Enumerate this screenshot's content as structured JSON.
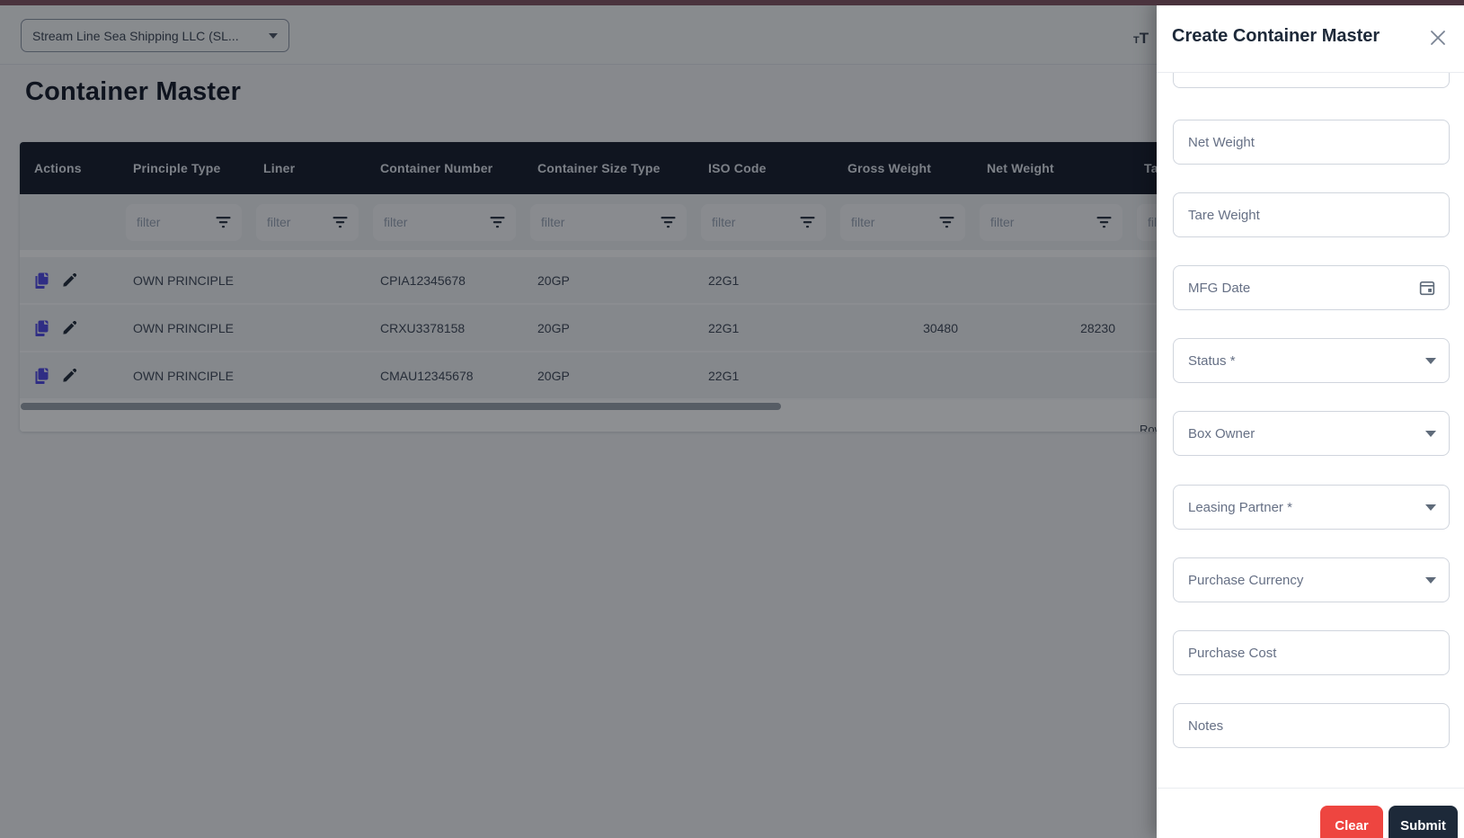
{
  "topbar": {
    "company_selector_value": "Stream Line Sea Shipping LLC  (SL...",
    "text_size_icon_small": "T",
    "text_size_icon_large": "T"
  },
  "page": {
    "title": "Container Master"
  },
  "table": {
    "filter_placeholder": "filter",
    "columns": [
      "Actions",
      "Principle Type",
      "Liner",
      "Container Number",
      "Container Size Type",
      "ISO Code",
      "Gross Weight",
      "Net Weight",
      "Tare Weight"
    ],
    "rows": [
      [
        "",
        "OWN PRINCIPLE",
        "",
        "CPIA12345678",
        "20GP",
        "22G1",
        "",
        "",
        ""
      ],
      [
        "",
        "OWN PRINCIPLE",
        "",
        "CRXU3378158",
        "20GP",
        "22G1",
        "30480",
        "28230",
        ""
      ],
      [
        "",
        "OWN PRINCIPLE",
        "",
        "CMAU12345678",
        "20GP",
        "22G1",
        "",
        "",
        ""
      ]
    ],
    "row_action_icons": [
      "copy-icon",
      "pencil-icon"
    ],
    "footer": {
      "rows_per_page_label": "Rows per page:"
    }
  },
  "drawer": {
    "title": "Create Container Master",
    "fields": [
      {
        "label": "Net Weight",
        "type": "text"
      },
      {
        "label": "Tare Weight",
        "type": "text"
      },
      {
        "label": "MFG Date",
        "type": "date"
      },
      {
        "label": "Status *",
        "type": "select"
      },
      {
        "label": "Box Owner",
        "type": "select"
      },
      {
        "label": "Leasing Partner *",
        "type": "select"
      },
      {
        "label": "Purchase Currency",
        "type": "select"
      },
      {
        "label": "Purchase Cost",
        "type": "text"
      },
      {
        "label": "Notes",
        "type": "text"
      }
    ],
    "buttons": {
      "clear": "Clear",
      "submit": "Submit"
    }
  },
  "colors": {
    "top_strip": "#4a333d",
    "table_header_bg": "#131a29",
    "copy_icon": "#4f46e5",
    "pencil_icon": "#1f2937",
    "clear_button": "#ee4540",
    "submit_button": "#1d2939"
  }
}
